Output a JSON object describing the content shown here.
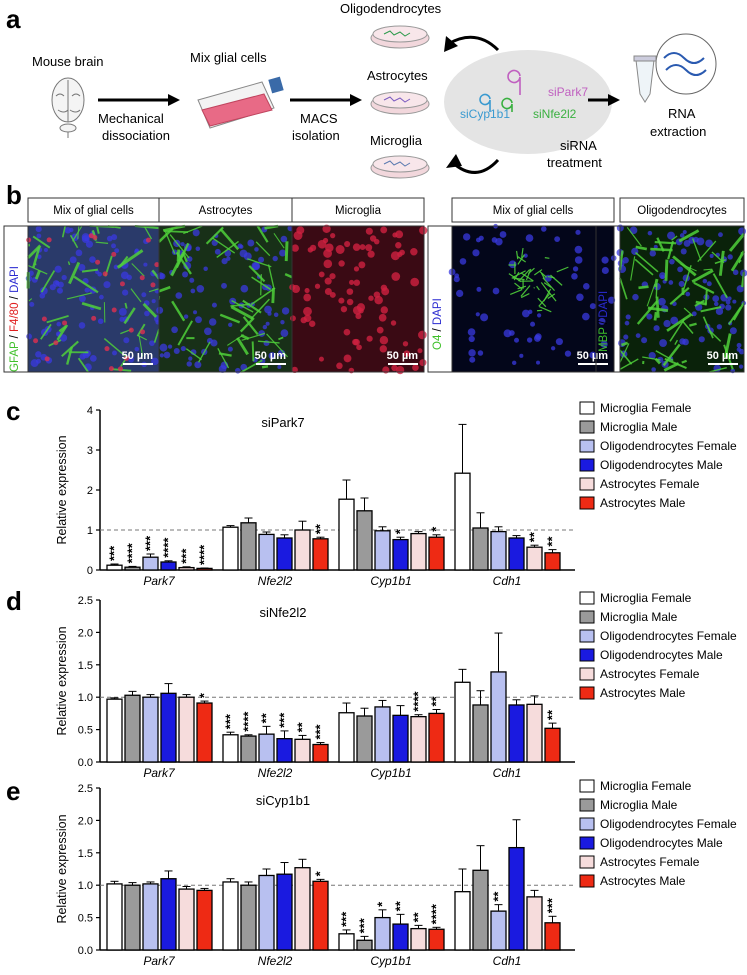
{
  "panel_a": {
    "letter": "a",
    "mouse_brain": "Mouse brain",
    "mix_glial": "Mix glial cells",
    "mech1": "Mechanical",
    "mech2": "dissociation",
    "macs1": "MACS",
    "macs2": "isolation",
    "oligo": "Oligodendrocytes",
    "astro": "Astrocytes",
    "micro": "Microglia",
    "sipark7": "siPark7",
    "sicyp1b1": "siCyp1b1",
    "sinfe2l2": "siNfe2l2",
    "sirna1": "siRNA",
    "sirna2": "treatment",
    "rna1": "RNA",
    "rna2": "extraction"
  },
  "panel_b": {
    "letter": "b",
    "left_stain": {
      "a": "GFAP",
      "sep1": " / ",
      "b": "F4/80",
      "sep2": " / ",
      "c": "DAPI"
    },
    "mid_stain": {
      "a": "O4",
      "sep1": " / ",
      "c": "DAPI"
    },
    "right_stain": {
      "a": "MBP",
      "sep1": " / ",
      "c": "DAPI"
    },
    "panels": [
      "Mix of glial cells",
      "Astrocytes",
      "Microglia",
      "Mix of glial cells",
      "Oligodendrocytes"
    ],
    "scale": "50 µm",
    "colors": {
      "green": "#3fc02a",
      "red": "#e02020",
      "blue": "#2a2ad0"
    }
  },
  "legend": [
    "Microglia Female",
    "Microglia Male",
    "Oligodendrocytes Female",
    "Oligodendrocytes Male",
    "Astrocytes Female",
    "Astrocytes Male"
  ],
  "series_colors": [
    "#ffffff",
    "#9a9a9a",
    "#b8c0f0",
    "#1a1ae0",
    "#f6dcdc",
    "#ee2a14"
  ],
  "chart_data": [
    {
      "type": "bar",
      "letter": "c",
      "title": "siPark7",
      "ylabel": "Relative expression",
      "categories": [
        "Park7",
        "Nfe2l2",
        "Cyp1b1",
        "Cdh1"
      ],
      "ylim": [
        0,
        4
      ],
      "yticks": [
        "0",
        "1",
        "2",
        "3",
        "4"
      ],
      "ytick_values": [
        0,
        1,
        2,
        3,
        4
      ],
      "reference_line": 1,
      "series": [
        {
          "name": "Microglia Female",
          "values": [
            0.12,
            1.07,
            1.77,
            2.42
          ],
          "errors": [
            0.03,
            0.04,
            0.48,
            1.22
          ],
          "stars": [
            "***",
            "",
            "",
            ""
          ]
        },
        {
          "name": "Microglia Male",
          "values": [
            0.07,
            1.18,
            1.48,
            1.05
          ],
          "errors": [
            0.02,
            0.12,
            0.32,
            0.38
          ],
          "stars": [
            "****",
            "",
            "",
            ""
          ]
        },
        {
          "name": "Oligodendrocytes Female",
          "values": [
            0.32,
            0.89,
            0.98,
            0.96
          ],
          "errors": [
            0.08,
            0.06,
            0.1,
            0.12
          ],
          "stars": [
            "***",
            "",
            "",
            ""
          ]
        },
        {
          "name": "Oligodendrocytes Male",
          "values": [
            0.2,
            0.8,
            0.76,
            0.8
          ],
          "errors": [
            0.03,
            0.08,
            0.06,
            0.06
          ],
          "stars": [
            "****",
            "",
            "*",
            ""
          ]
        },
        {
          "name": "Astrocytes Female",
          "values": [
            0.06,
            1.0,
            0.91,
            0.57
          ],
          "errors": [
            0.02,
            0.22,
            0.05,
            0.05
          ],
          "stars": [
            "***",
            "",
            "",
            "**"
          ]
        },
        {
          "name": "Astrocytes Male",
          "values": [
            0.04,
            0.78,
            0.82,
            0.43
          ],
          "errors": [
            0.01,
            0.04,
            0.06,
            0.08
          ],
          "stars": [
            "****",
            "**",
            "*",
            "**"
          ]
        }
      ]
    },
    {
      "type": "bar",
      "letter": "d",
      "title": "siNfe2l2",
      "ylabel": "Relative expression",
      "categories": [
        "Park7",
        "Nfe2l2",
        "Cyp1b1",
        "Cdh1"
      ],
      "ylim": [
        0,
        2.5
      ],
      "yticks": [
        "0.0",
        "0.5",
        "1.0",
        "1.5",
        "2.0",
        "2.5"
      ],
      "ytick_values": [
        0,
        0.5,
        1.0,
        1.5,
        2.0,
        2.5
      ],
      "reference_line": 1,
      "series": [
        {
          "name": "Microglia Female",
          "values": [
            0.97,
            0.42,
            0.76,
            1.23
          ],
          "errors": [
            0.02,
            0.04,
            0.15,
            0.2
          ],
          "stars": [
            "",
            "***",
            "",
            ""
          ]
        },
        {
          "name": "Microglia Male",
          "values": [
            1.03,
            0.4,
            0.71,
            0.88
          ],
          "errors": [
            0.06,
            0.02,
            0.12,
            0.22
          ],
          "stars": [
            "",
            "****",
            "",
            ""
          ]
        },
        {
          "name": "Oligodendrocytes Female",
          "values": [
            1.0,
            0.43,
            0.85,
            1.39
          ],
          "errors": [
            0.04,
            0.12,
            0.1,
            0.6
          ],
          "stars": [
            "",
            "**",
            "",
            ""
          ]
        },
        {
          "name": "Oligodendrocytes Male",
          "values": [
            1.06,
            0.36,
            0.72,
            0.88
          ],
          "errors": [
            0.15,
            0.12,
            0.15,
            0.08
          ],
          "stars": [
            "",
            "***",
            "",
            ""
          ]
        },
        {
          "name": "Astrocytes Female",
          "values": [
            1.0,
            0.35,
            0.7,
            0.89
          ],
          "errors": [
            0.04,
            0.06,
            0.03,
            0.13
          ],
          "stars": [
            "",
            "**",
            "****",
            ""
          ]
        },
        {
          "name": "Astrocytes Male",
          "values": [
            0.91,
            0.27,
            0.75,
            0.52
          ],
          "errors": [
            0.03,
            0.03,
            0.06,
            0.08
          ],
          "stars": [
            "*",
            "***",
            "**",
            "**"
          ]
        }
      ]
    },
    {
      "type": "bar",
      "letter": "e",
      "title": "siCyp1b1",
      "ylabel": "Relative expression",
      "categories": [
        "Park7",
        "Nfe2l2",
        "Cyp1b1",
        "Cdh1"
      ],
      "ylim": [
        0,
        2.5
      ],
      "yticks": [
        "0.0",
        "0.5",
        "1.0",
        "1.5",
        "2.0",
        "2.5"
      ],
      "ytick_values": [
        0,
        0.5,
        1.0,
        1.5,
        2.0,
        2.5
      ],
      "reference_line": 1,
      "series": [
        {
          "name": "Microglia Female",
          "values": [
            1.02,
            1.05,
            0.25,
            0.9
          ],
          "errors": [
            0.04,
            0.05,
            0.06,
            0.35
          ],
          "stars": [
            "",
            "",
            "***",
            ""
          ]
        },
        {
          "name": "Microglia Male",
          "values": [
            1.0,
            1.0,
            0.15,
            1.23
          ],
          "errors": [
            0.04,
            0.05,
            0.06,
            0.38
          ],
          "stars": [
            "",
            "",
            "***",
            ""
          ]
        },
        {
          "name": "Oligodendrocytes Female",
          "values": [
            1.02,
            1.15,
            0.5,
            0.6
          ],
          "errors": [
            0.03,
            0.1,
            0.12,
            0.1
          ],
          "stars": [
            "",
            "",
            "*",
            "**"
          ]
        },
        {
          "name": "Oligodendrocytes Male",
          "values": [
            1.1,
            1.17,
            0.4,
            1.58
          ],
          "errors": [
            0.12,
            0.18,
            0.15,
            0.43
          ],
          "stars": [
            "",
            "",
            "**",
            ""
          ]
        },
        {
          "name": "Astrocytes Female",
          "values": [
            0.94,
            1.27,
            0.33,
            0.82
          ],
          "errors": [
            0.04,
            0.13,
            0.05,
            0.1
          ],
          "stars": [
            "",
            "",
            "**",
            ""
          ]
        },
        {
          "name": "Astrocytes Male",
          "values": [
            0.92,
            1.06,
            0.32,
            0.42
          ],
          "errors": [
            0.03,
            0.03,
            0.03,
            0.1
          ],
          "stars": [
            "",
            "*",
            "****",
            "***"
          ]
        }
      ]
    }
  ]
}
